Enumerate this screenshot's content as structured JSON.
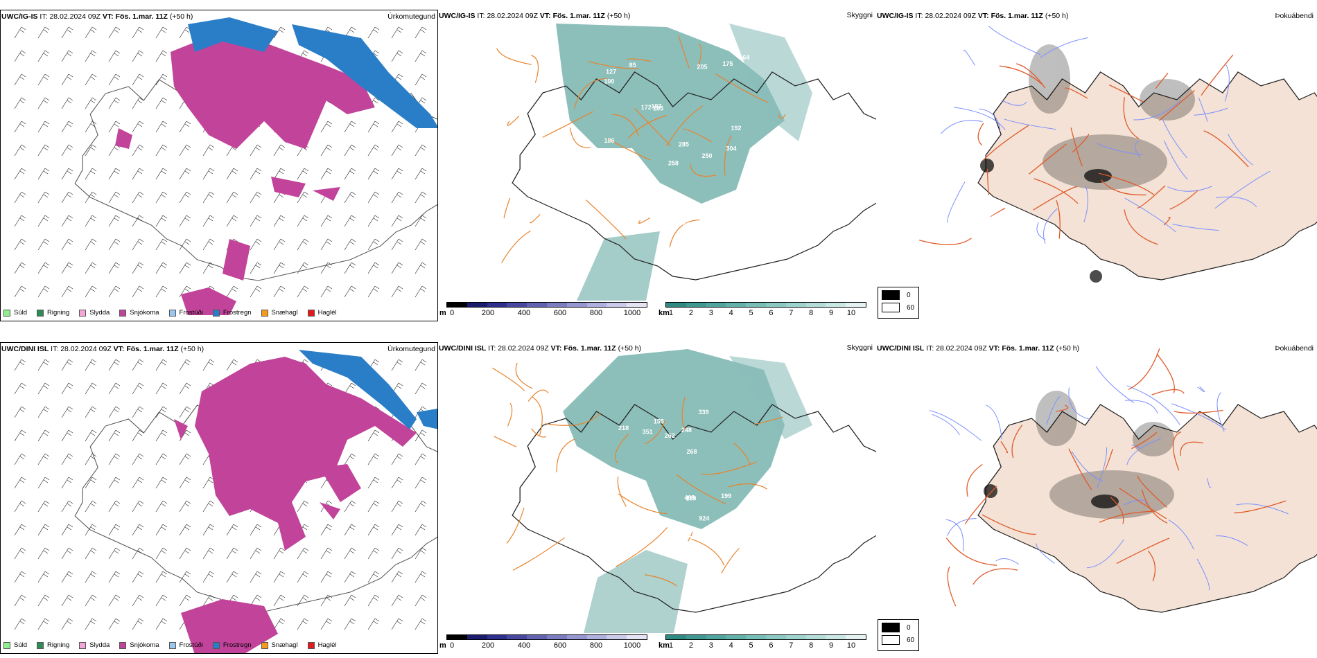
{
  "rows": [
    {
      "model": "UWC/IG-IS",
      "it_label": "IT:",
      "it_value": "28.02.2024 09Z",
      "vt_label": "VT:",
      "vt_value": "Fös. 1.mar. 11Z",
      "lead": "(+50 h)",
      "panel_titles": {
        "precip": "Úrkomutegund",
        "cloud": "Skyggni",
        "fog": "Þokuábendi"
      },
      "cloud_values": [
        "250",
        "304",
        "156",
        "85",
        "185",
        "235",
        "166",
        "205",
        "172",
        "461",
        "100",
        "186",
        "127",
        "233",
        "196",
        "192",
        "258",
        "285",
        "197",
        "233",
        "164",
        "175"
      ]
    },
    {
      "model": "UWC/DINI ISL",
      "it_label": "IT:",
      "it_value": "28.02.2024 09Z",
      "vt_label": "VT:",
      "vt_value": "Fös. 1.mar. 11Z",
      "lead": "(+50 h)",
      "panel_titles": {
        "precip": "Úrkomutegund",
        "cloud": "Skyggni",
        "fog": "Þokuábendi"
      },
      "cloud_values": [
        "334",
        "155",
        "72",
        "305",
        "311",
        "339",
        "199",
        "248",
        "97",
        "385",
        "351",
        "183",
        "924",
        "268",
        "262",
        "199",
        "410",
        "408",
        "183",
        "218"
      ]
    }
  ],
  "precip_legend": [
    {
      "label": "Súld",
      "color": "#90ee90"
    },
    {
      "label": "Rigning",
      "color": "#2e8b57"
    },
    {
      "label": "Slydda",
      "color": "#f4a6d6"
    },
    {
      "label": "Snjókoma",
      "color": "#c1449a"
    },
    {
      "label": "Frostúði",
      "color": "#9ac7f0"
    },
    {
      "label": "Frostregn",
      "color": "#2a7ec8"
    },
    {
      "label": "Snæhagl",
      "color": "#f49b1a"
    },
    {
      "label": "Haglél",
      "color": "#e31a1c"
    }
  ],
  "cloud_base_bar": {
    "unit": "m",
    "ticks": [
      "0",
      "200",
      "400",
      "600",
      "800",
      "1000"
    ],
    "colors": [
      "#000000",
      "#1c1c6e",
      "#2f2f8e",
      "#4848a0",
      "#6262b0",
      "#7c7cc0",
      "#9696d0",
      "#b0b0de",
      "#cacaea",
      "#e4e4f4"
    ]
  },
  "visibility_bar": {
    "unit": "km",
    "ticks": [
      "1",
      "2",
      "3",
      "4",
      "5",
      "6",
      "7",
      "8",
      "9",
      "10"
    ],
    "colors": [
      "#2f8a82",
      "#3f9990",
      "#50a69e",
      "#62b2aa",
      "#76beb6",
      "#8ac8c1",
      "#9fd3cd",
      "#b4ddd8",
      "#c9e7e3",
      "#e4f3f1"
    ]
  },
  "sun_legend": {
    "values": [
      "0",
      "60"
    ],
    "colors": [
      "#000000",
      "#ffffff"
    ]
  },
  "colors": {
    "snow": "#c1449a",
    "freezing_rain": "#2a7ec8",
    "visibility_teal": "#2f8a82",
    "roads": "#e8822a",
    "fog_land": "#f3e2d5",
    "rivers": "#7b8fff"
  }
}
